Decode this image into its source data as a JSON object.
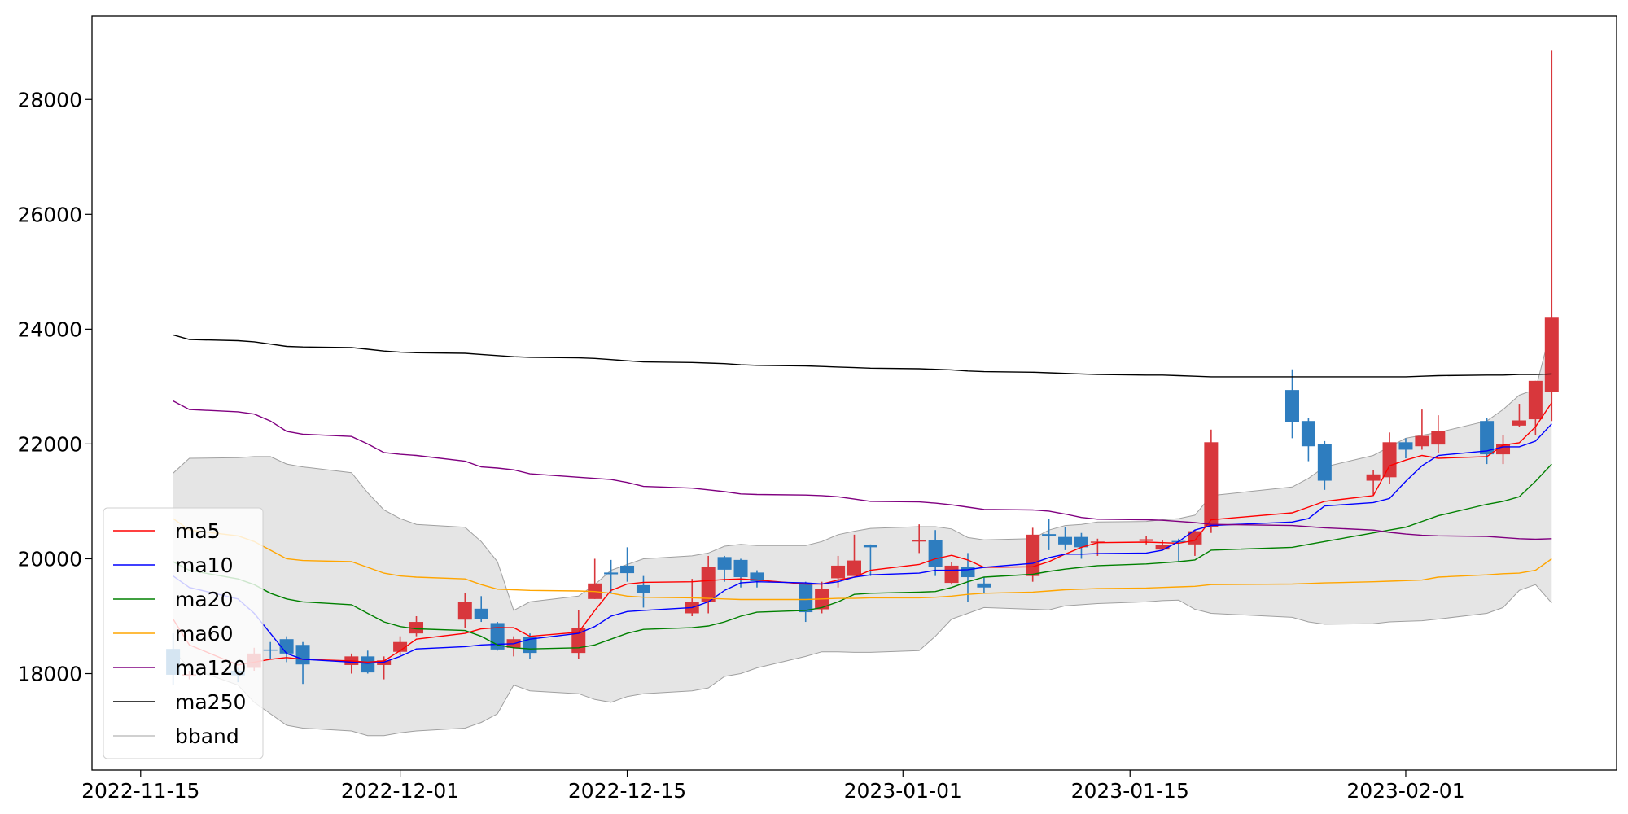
{
  "chart_data": {
    "type": "candlestick",
    "x": [
      "2022-11-17",
      "2022-11-18",
      "2022-11-21",
      "2022-11-22",
      "2022-11-23",
      "2022-11-24",
      "2022-11-25",
      "2022-11-28",
      "2022-11-29",
      "2022-11-30",
      "2022-12-01",
      "2022-12-02",
      "2022-12-05",
      "2022-12-06",
      "2022-12-07",
      "2022-12-08",
      "2022-12-09",
      "2022-12-12",
      "2022-12-13",
      "2022-12-14",
      "2022-12-15",
      "2022-12-16",
      "2022-12-19",
      "2022-12-20",
      "2022-12-21",
      "2022-12-22",
      "2022-12-23",
      "2022-12-26",
      "2022-12-27",
      "2022-12-28",
      "2022-12-29",
      "2022-12-30",
      "2023-01-02",
      "2023-01-03",
      "2023-01-04",
      "2023-01-05",
      "2023-01-06",
      "2023-01-09",
      "2023-01-10",
      "2023-01-11",
      "2023-01-12",
      "2023-01-13",
      "2023-01-16",
      "2023-01-17",
      "2023-01-18",
      "2023-01-19",
      "2023-01-20",
      "2023-01-25",
      "2023-01-26",
      "2023-01-27",
      "2023-01-30",
      "2023-01-31",
      "2023-02-01",
      "2023-02-02",
      "2023-02-03",
      "2023-02-06",
      "2023-02-07",
      "2023-02-08",
      "2023-02-09",
      "2023-02-10"
    ],
    "open": [
      18430,
      17950,
      18050,
      18100,
      18420,
      18600,
      18500,
      18150,
      18300,
      18150,
      18380,
      18700,
      18940,
      19130,
      18880,
      18450,
      18640,
      18360,
      19300,
      19760,
      19880,
      19540,
      19050,
      19250,
      20030,
      19980,
      19760,
      19570,
      19120,
      19660,
      19700,
      20240,
      20300,
      20320,
      19580,
      19860,
      19570,
      19700,
      20430,
      20380,
      20380,
      20290,
      20310,
      20160,
      20310,
      20250,
      20560,
      22940,
      22400,
      22000,
      21360,
      21420,
      22030,
      21960,
      21990,
      22400,
      21820,
      22320,
      22430,
      22900
    ],
    "high": [
      18700,
      18050,
      18100,
      18450,
      18550,
      18650,
      18550,
      18350,
      18400,
      18300,
      18650,
      19000,
      19400,
      19350,
      18900,
      18650,
      18700,
      19100,
      20000,
      19980,
      20200,
      19700,
      19650,
      20050,
      20050,
      20000,
      19800,
      19600,
      19600,
      20050,
      20420,
      20250,
      20600,
      20500,
      19950,
      20100,
      19680,
      20540,
      20700,
      20550,
      20450,
      20350,
      20400,
      20320,
      20350,
      20500,
      22250,
      23300,
      22450,
      22050,
      21550,
      22200,
      22100,
      22600,
      22500,
      22450,
      22150,
      22700,
      23100,
      28850
    ],
    "low": [
      17800,
      17900,
      17850,
      18050,
      18250,
      18200,
      17820,
      18000,
      18000,
      17900,
      18320,
      18650,
      18800,
      18900,
      18400,
      18300,
      18250,
      18250,
      19300,
      19400,
      19600,
      19150,
      19000,
      19050,
      19600,
      19500,
      19500,
      18900,
      19050,
      19500,
      19700,
      19700,
      20100,
      19700,
      19550,
      19250,
      19400,
      19600,
      20150,
      20150,
      20000,
      20050,
      20250,
      20150,
      19950,
      20050,
      20450,
      22100,
      21700,
      21200,
      21100,
      21300,
      21750,
      21900,
      21850,
      21650,
      21650,
      22300,
      22150,
      22400
    ],
    "close": [
      17980,
      17990,
      17970,
      18350,
      18400,
      18350,
      18160,
      18300,
      18020,
      18230,
      18550,
      18900,
      19250,
      18950,
      18420,
      18600,
      18360,
      18800,
      19570,
      19730,
      19750,
      19400,
      19250,
      19860,
      19810,
      19680,
      19610,
      19070,
      19480,
      19880,
      19970,
      20200,
      20330,
      19860,
      19880,
      19680,
      19500,
      20420,
      20400,
      20250,
      20200,
      20300,
      20340,
      20240,
      20290,
      20480,
      22030,
      22380,
      21960,
      21360,
      21470,
      22030,
      21900,
      22140,
      22230,
      21820,
      22000,
      22410,
      23100,
      24200
    ],
    "up_color": "#d8373c",
    "down_color": "#2e7dbf",
    "series": [
      {
        "name": "ma5",
        "color": "#ff0000",
        "values": [
          18950,
          18500,
          18150,
          18200,
          18250,
          18280,
          18250,
          18220,
          18200,
          18220,
          18400,
          18600,
          18700,
          18780,
          18800,
          18800,
          18650,
          18720,
          19100,
          19450,
          19560,
          19590,
          19600,
          19620,
          19640,
          19650,
          19630,
          19560,
          19560,
          19630,
          19680,
          19800,
          19900,
          20000,
          20060,
          19980,
          19850,
          19860,
          19950,
          20080,
          20200,
          20280,
          20290,
          20280,
          20270,
          20320,
          20680,
          20800,
          20900,
          21000,
          21100,
          21620,
          21720,
          21800,
          21750,
          21780,
          21980,
          22020,
          22300,
          22720
        ]
      },
      {
        "name": "ma10",
        "color": "#0000ff",
        "values": [
          19700,
          19500,
          19300,
          19050,
          18700,
          18350,
          18250,
          18200,
          18180,
          18200,
          18300,
          18430,
          18470,
          18500,
          18510,
          18520,
          18600,
          18700,
          18820,
          19000,
          19080,
          19100,
          19150,
          19250,
          19450,
          19580,
          19600,
          19580,
          19560,
          19600,
          19680,
          19720,
          19750,
          19800,
          19800,
          19810,
          19850,
          19920,
          20020,
          20080,
          20080,
          20090,
          20100,
          20150,
          20300,
          20500,
          20580,
          20640,
          20700,
          20920,
          20980,
          21050,
          21350,
          21620,
          21800,
          21880,
          21950,
          21950,
          22050,
          22350
        ]
      },
      {
        "name": "ma20",
        "color": "#008000",
        "values": [
          19950,
          19800,
          19650,
          19550,
          19400,
          19300,
          19250,
          19200,
          19050,
          18900,
          18820,
          18780,
          18750,
          18650,
          18500,
          18450,
          18430,
          18450,
          18500,
          18600,
          18700,
          18770,
          18800,
          18830,
          18900,
          19000,
          19070,
          19100,
          19150,
          19250,
          19380,
          19400,
          19420,
          19430,
          19500,
          19600,
          19680,
          19730,
          19780,
          19820,
          19850,
          19880,
          19910,
          19930,
          19950,
          19980,
          20150,
          20200,
          20250,
          20300,
          20450,
          20500,
          20550,
          20650,
          20750,
          20950,
          21000,
          21080,
          21350,
          21650
        ]
      },
      {
        "name": "ma60",
        "color": "#ffa500",
        "values": [
          20700,
          20500,
          20400,
          20300,
          20150,
          20000,
          19970,
          19950,
          19850,
          19750,
          19700,
          19680,
          19650,
          19550,
          19470,
          19460,
          19450,
          19440,
          19430,
          19400,
          19350,
          19330,
          19320,
          19310,
          19300,
          19290,
          19290,
          19290,
          19300,
          19310,
          19310,
          19320,
          19320,
          19330,
          19350,
          19380,
          19400,
          19420,
          19440,
          19460,
          19470,
          19480,
          19490,
          19500,
          19510,
          19520,
          19550,
          19560,
          19570,
          19580,
          19600,
          19610,
          19620,
          19630,
          19680,
          19720,
          19740,
          19750,
          19800,
          20000
        ]
      },
      {
        "name": "ma120",
        "color": "#800080",
        "values": [
          22750,
          22600,
          22560,
          22520,
          22400,
          22220,
          22170,
          22130,
          22000,
          21850,
          21820,
          21800,
          21700,
          21600,
          21580,
          21550,
          21480,
          21420,
          21400,
          21380,
          21330,
          21260,
          21230,
          21200,
          21170,
          21130,
          21120,
          21110,
          21100,
          21080,
          21040,
          21000,
          20990,
          20970,
          20940,
          20900,
          20860,
          20850,
          20830,
          20780,
          20720,
          20690,
          20680,
          20670,
          20650,
          20630,
          20600,
          20580,
          20560,
          20540,
          20500,
          20460,
          20430,
          20410,
          20400,
          20390,
          20370,
          20350,
          20340,
          20350
        ]
      },
      {
        "name": "ma250",
        "color": "#000000",
        "values": [
          23900,
          23820,
          23800,
          23780,
          23740,
          23700,
          23690,
          23680,
          23650,
          23620,
          23600,
          23590,
          23580,
          23560,
          23540,
          23520,
          23510,
          23500,
          23490,
          23470,
          23450,
          23430,
          23420,
          23410,
          23400,
          23380,
          23370,
          23360,
          23350,
          23340,
          23330,
          23320,
          23310,
          23300,
          23290,
          23270,
          23260,
          23250,
          23240,
          23230,
          23220,
          23210,
          23200,
          23200,
          23190,
          23180,
          23170,
          23170,
          23170,
          23170,
          23170,
          23170,
          23170,
          23180,
          23190,
          23200,
          23200,
          23210,
          23210,
          23220
        ]
      }
    ],
    "band": {
      "name": "bband",
      "color": "#a0a0a0",
      "fill": "#e5e5e5",
      "upper": [
        21490,
        21750,
        21760,
        21780,
        21780,
        21650,
        21600,
        21500,
        21150,
        20850,
        20700,
        20600,
        20550,
        20300,
        19950,
        19100,
        19250,
        19350,
        19550,
        19800,
        19900,
        20000,
        20050,
        20100,
        20220,
        20250,
        20230,
        20230,
        20300,
        20420,
        20480,
        20530,
        20560,
        20560,
        20520,
        20370,
        20330,
        20350,
        20500,
        20580,
        20600,
        20640,
        20650,
        20680,
        20700,
        20760,
        21100,
        21250,
        21400,
        21600,
        21800,
        21950,
        22100,
        22150,
        22200,
        22400,
        22600,
        22850,
        22950,
        24050
      ],
      "lower": [
        18400,
        18100,
        17800,
        17500,
        17300,
        17100,
        17050,
        17000,
        16920,
        16920,
        16970,
        17000,
        17050,
        17150,
        17300,
        17800,
        17700,
        17650,
        17550,
        17500,
        17600,
        17650,
        17700,
        17750,
        17950,
        18000,
        18100,
        18300,
        18380,
        18380,
        18370,
        18370,
        18400,
        18650,
        18950,
        19050,
        19150,
        19120,
        19110,
        19180,
        19200,
        19220,
        19250,
        19270,
        19280,
        19120,
        19050,
        18980,
        18900,
        18860,
        18870,
        18900,
        18910,
        18920,
        18950,
        19050,
        19150,
        19450,
        19550,
        19230
      ]
    },
    "xlim": [
      "2022-11-12",
      "2023-02-14"
    ],
    "xticks": [
      "2022-11-15",
      "2022-12-01",
      "2022-12-15",
      "2023-01-01",
      "2023-01-15",
      "2023-02-01"
    ],
    "ylim": [
      16320,
      29450
    ],
    "yticks": [
      18000,
      20000,
      22000,
      24000,
      26000,
      28000
    ],
    "legend": "lower left"
  }
}
